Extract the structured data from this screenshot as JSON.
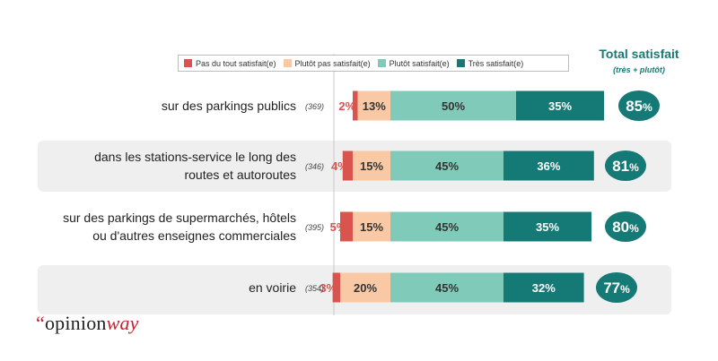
{
  "legend": [
    {
      "label": "Pas du tout satisfait(e)",
      "color": "#d9534f"
    },
    {
      "label": "Plutôt pas satisfait(e)",
      "color": "#f8c9a4"
    },
    {
      "label": "Plutôt satisfait(e)",
      "color": "#7fcab9"
    },
    {
      "label": "Très satisfait(e)",
      "color": "#157a75"
    }
  ],
  "total": {
    "title": "Total satisfait",
    "subtitle": "(très + plutôt)"
  },
  "logo": {
    "quote": "“",
    "opinion": "opinion",
    "way": "way"
  },
  "chart_data": {
    "type": "bar",
    "stacked": true,
    "orientation": "horizontal",
    "categories": [
      {
        "lines": [
          "sur des parkings publics"
        ],
        "n": "(369)"
      },
      {
        "lines": [
          "dans les stations-service le long des",
          "routes et autoroutes"
        ],
        "n": "(346)"
      },
      {
        "lines": [
          "sur des parkings de supermarchés, hôtels",
          "ou d'autres enseignes commerciales"
        ],
        "n": "(395)"
      },
      {
        "lines": [
          "en voirie"
        ],
        "n": "(354)"
      }
    ],
    "series": [
      {
        "name": "Pas du tout satisfait(e)",
        "values": [
          2,
          4,
          5,
          3
        ]
      },
      {
        "name": "Plutôt pas satisfait(e)",
        "values": [
          13,
          15,
          15,
          20
        ]
      },
      {
        "name": "Plutôt satisfait(e)",
        "values": [
          50,
          45,
          45,
          45
        ]
      },
      {
        "name": "Très satisfait(e)",
        "values": [
          35,
          36,
          35,
          32
        ]
      }
    ],
    "value_labels": [
      [
        "2%",
        "13%",
        "50%",
        "35%"
      ],
      [
        "4%",
        "15%",
        "45%",
        "36%"
      ],
      [
        "5%",
        "15%",
        "45%",
        "35%"
      ],
      [
        "3%",
        "20%",
        "45%",
        "32%"
      ]
    ],
    "totals": [
      {
        "value": "85",
        "unit": "%"
      },
      {
        "value": "81",
        "unit": "%"
      },
      {
        "value": "80",
        "unit": "%"
      },
      {
        "value": "77",
        "unit": "%"
      }
    ],
    "shaded_rows": [
      false,
      true,
      false,
      true
    ]
  }
}
